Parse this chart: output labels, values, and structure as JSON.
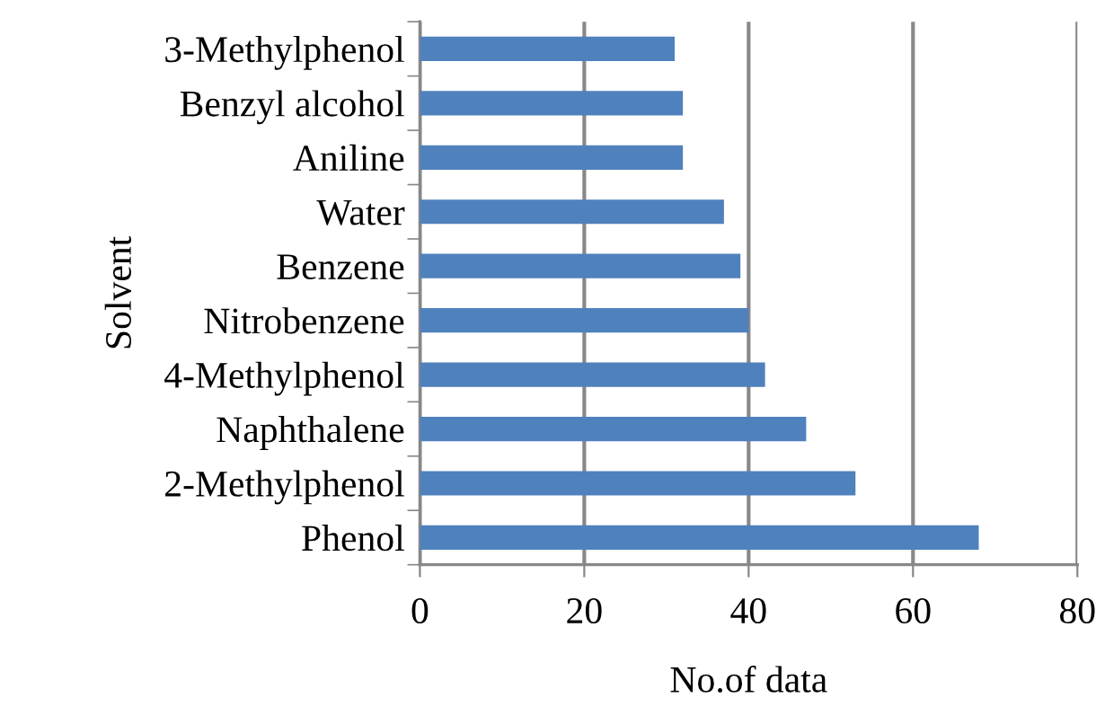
{
  "chart_data": {
    "type": "bar",
    "orientation": "horizontal",
    "xlabel": "No.of data",
    "ylabel": "Solvent",
    "categories": [
      "3-Methylphenol",
      "Benzyl alcohol",
      "Aniline",
      "Water",
      "Benzene",
      "Nitrobenzene",
      "4-Methylphenol",
      "Naphthalene",
      "2-Methylphenol",
      "Phenol"
    ],
    "values": [
      31,
      32,
      32,
      37,
      39,
      40,
      42,
      47,
      53,
      68
    ],
    "color": "#4f81bd",
    "xlim": [
      0,
      80
    ],
    "xticks": [
      0,
      20,
      40,
      60,
      80
    ],
    "grid": "x",
    "legend": false
  }
}
